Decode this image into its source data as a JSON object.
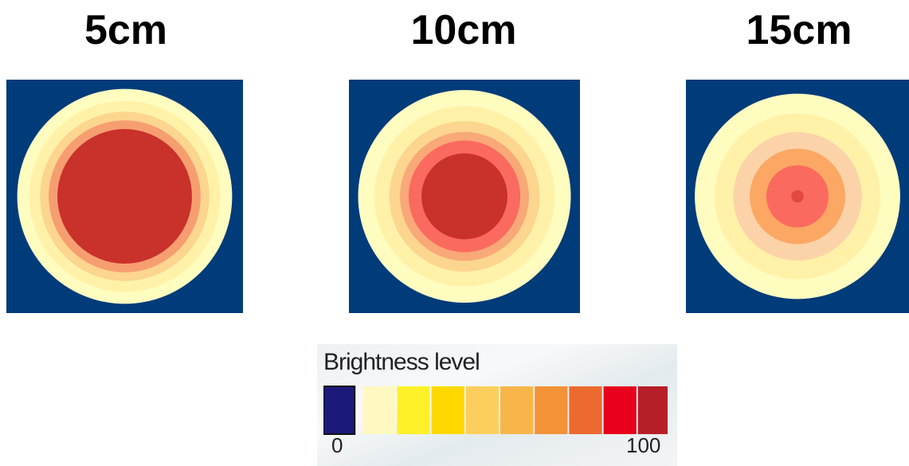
{
  "panels": [
    {
      "label": "5cm",
      "rings": [
        {
          "r": 0.99,
          "color": "#fffcc0"
        },
        {
          "r": 0.88,
          "color": "#fff2a8"
        },
        {
          "r": 0.78,
          "color": "#fcd58f"
        },
        {
          "r": 0.7,
          "color": "#f79e70"
        },
        {
          "r": 0.62,
          "color": "#c9312b"
        }
      ]
    },
    {
      "label": "10cm",
      "rings": [
        {
          "r": 0.99,
          "color": "#fffcc0"
        },
        {
          "r": 0.84,
          "color": "#fff2a8"
        },
        {
          "r": 0.7,
          "color": "#fcd58f"
        },
        {
          "r": 0.6,
          "color": "#f9a878"
        },
        {
          "r": 0.52,
          "color": "#fb6a5e"
        },
        {
          "r": 0.4,
          "color": "#c9312b"
        }
      ]
    },
    {
      "label": "15cm",
      "rings": [
        {
          "r": 0.99,
          "color": "#fffcc0"
        },
        {
          "r": 0.8,
          "color": "#fff2a8"
        },
        {
          "r": 0.62,
          "color": "#fcd3a8"
        },
        {
          "r": 0.46,
          "color": "#fca764"
        },
        {
          "r": 0.3,
          "color": "#fb6a5e"
        },
        {
          "r": 0.06,
          "color": "#e24a3f"
        }
      ]
    }
  ],
  "background_color": "#003b7a",
  "legend": {
    "title": "Brightness level",
    "min_label": "0",
    "max_label": "100",
    "colors": [
      "#1b1a7a",
      "#fff8c0",
      "#fff02a",
      "#ffd800",
      "#fccf5c",
      "#f8b64a",
      "#f39237",
      "#ec6a2f",
      "#e8001c",
      "#b71f28"
    ]
  }
}
